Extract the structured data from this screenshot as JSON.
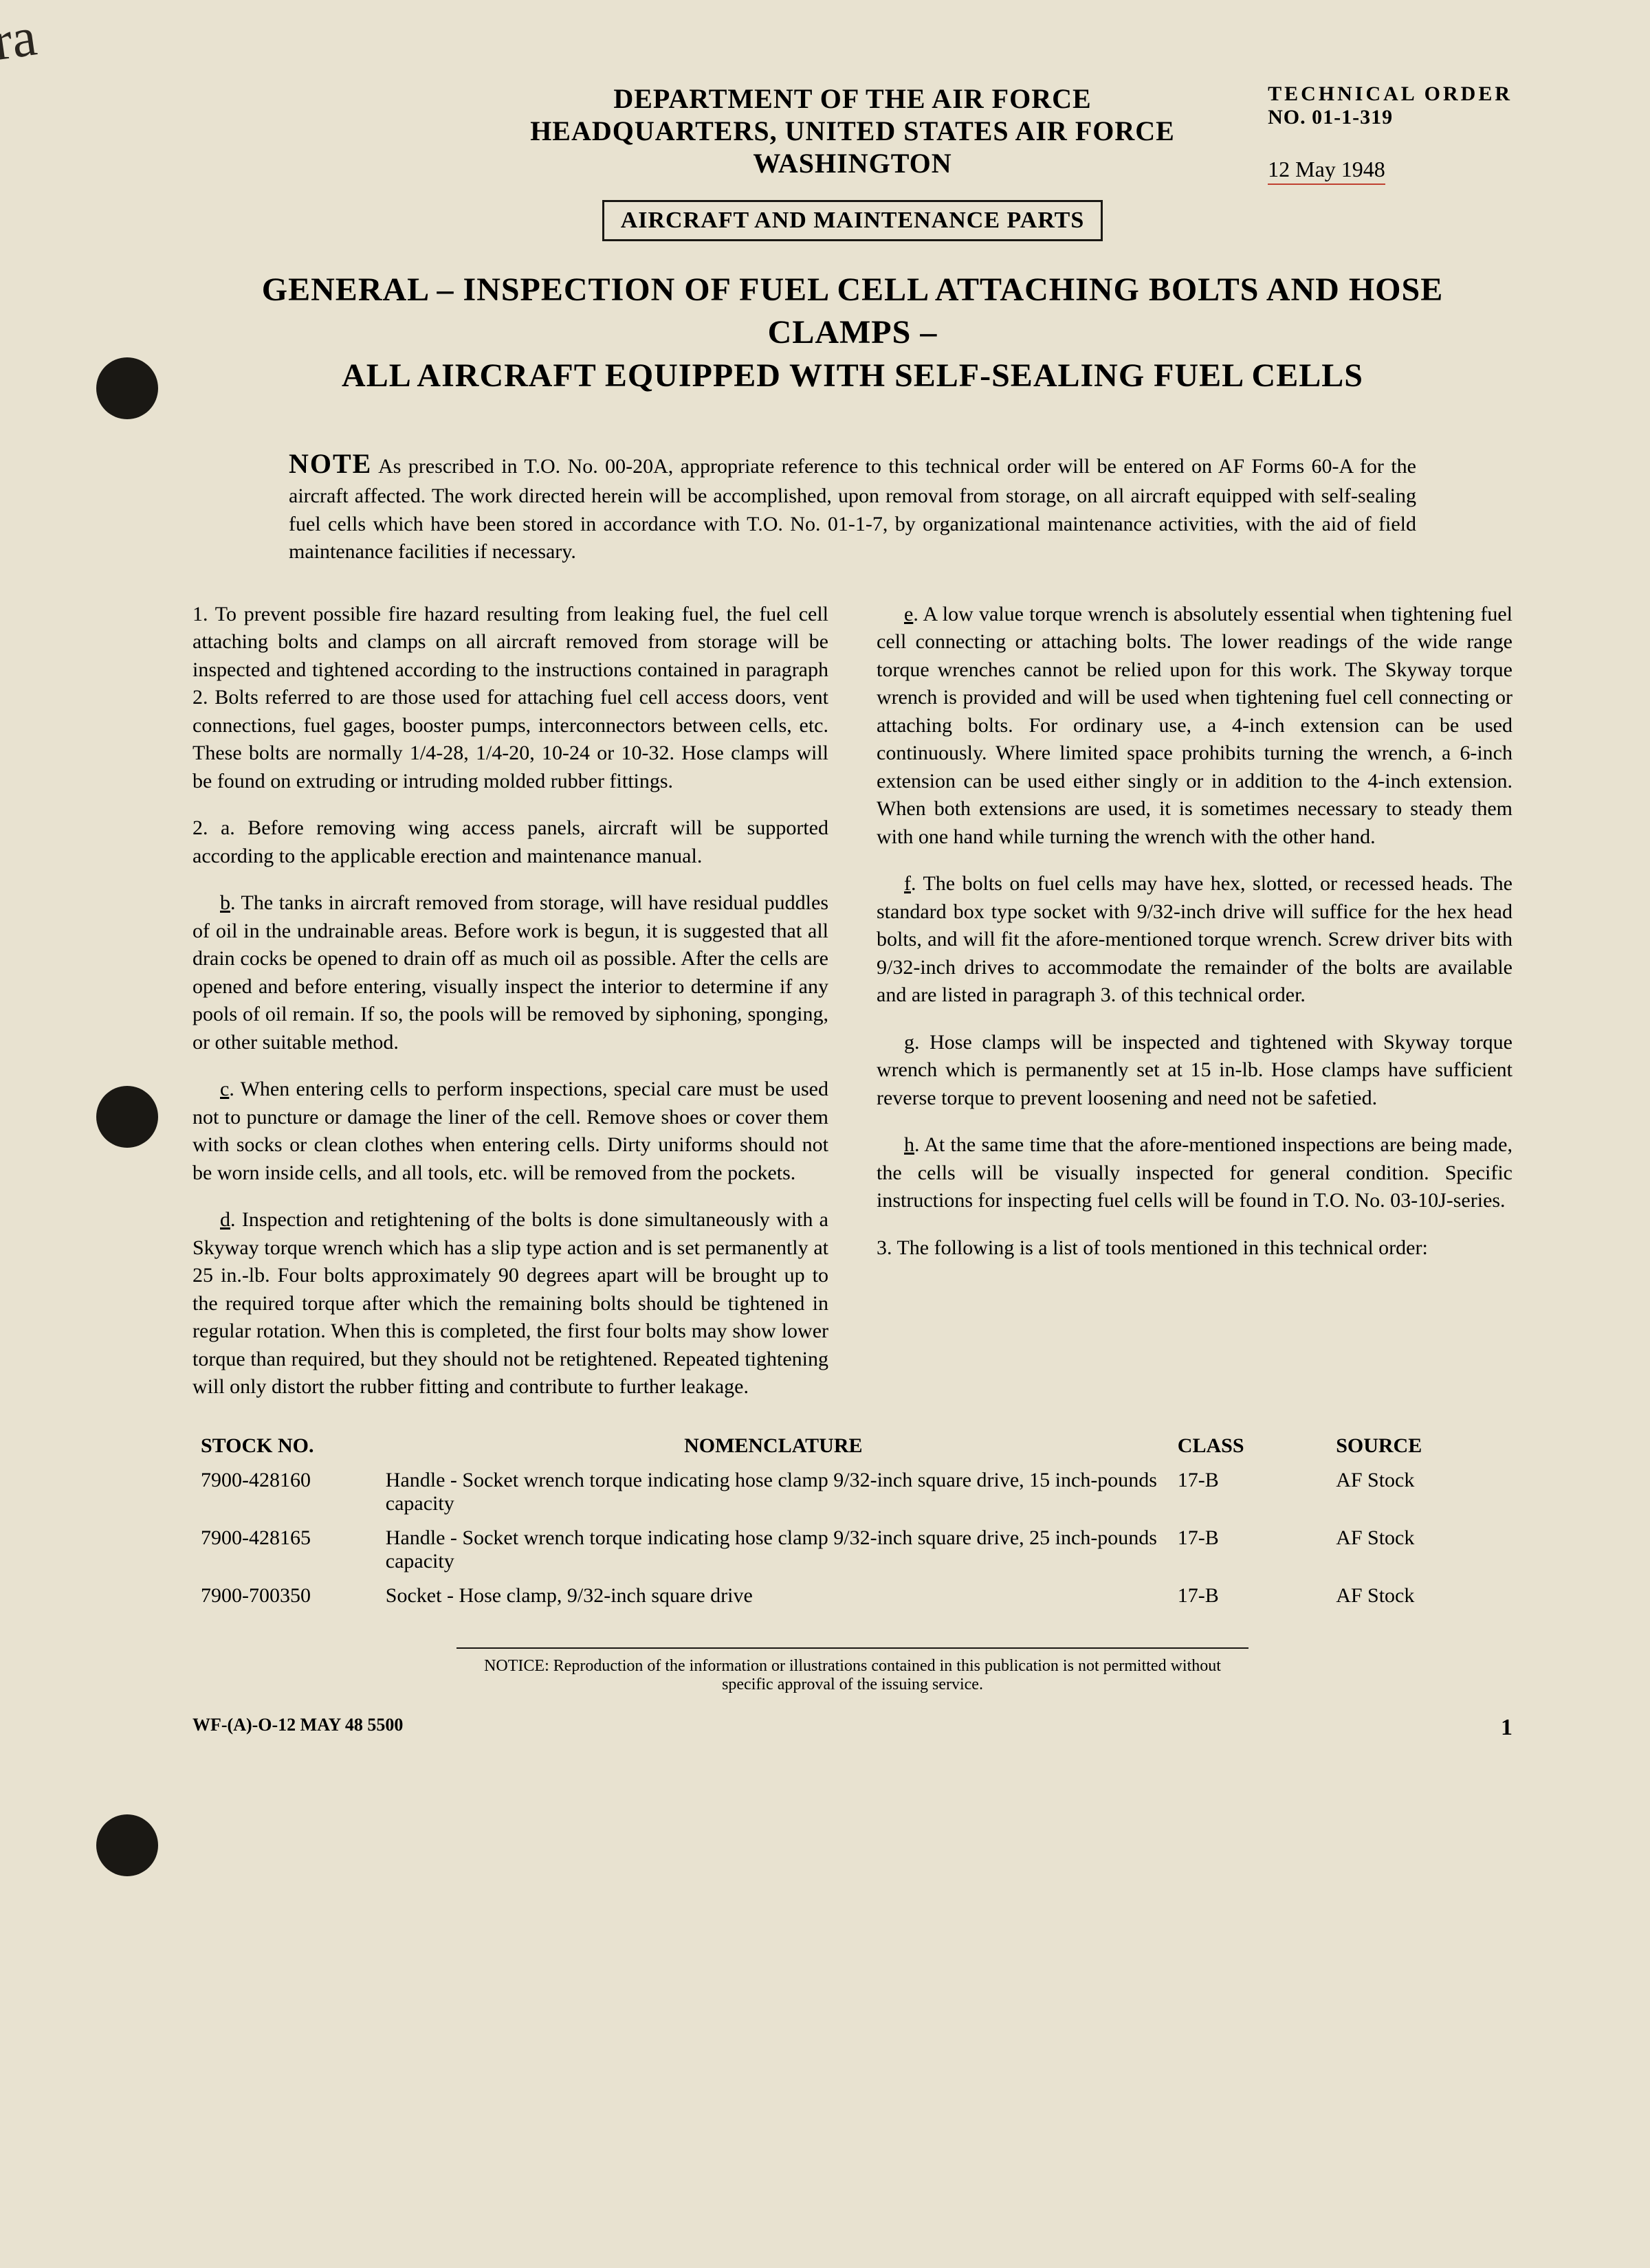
{
  "handwritten_note": "Extra",
  "header": {
    "dept": "DEPARTMENT OF THE AIR FORCE",
    "hq": "HEADQUARTERS, UNITED STATES AIR FORCE",
    "city": "WASHINGTON",
    "boxed": "AIRCRAFT AND MAINTENANCE PARTS",
    "tech_order_label": "TECHNICAL ORDER",
    "tech_order_no": "NO. 01-1-319",
    "date": "12 May 1948"
  },
  "title_line1": "GENERAL – INSPECTION OF FUEL CELL ATTACHING BOLTS AND HOSE CLAMPS –",
  "title_line2": "ALL AIRCRAFT EQUIPPED WITH SELF-SEALING FUEL CELLS",
  "note_label": "NOTE",
  "note_body": "As prescribed in T.O. No. 00-20A, appropriate reference to this technical order will be entered on AF Forms 60-A for the aircraft affected. The work directed herein will be accomplished, upon removal from storage, on all aircraft equipped with self-sealing fuel cells which have been stored in accordance with T.O. No. 01-1-7, by organizational maintenance activities, with the aid of field maintenance facilities if necessary.",
  "paragraphs": {
    "p1": "1. To prevent possible fire hazard resulting from leaking fuel, the fuel cell attaching bolts and clamps on all aircraft removed from storage will be inspected and tightened according to the instructions contained in paragraph 2. Bolts referred to are those used for attaching fuel cell access doors, vent connections, fuel gages, booster pumps, interconnectors between cells, etc. These bolts are normally 1/4-28, 1/4-20, 10-24 or 10-32. Hose clamps will be found on extruding or intruding molded rubber fittings.",
    "p2a_label": "a",
    "p2a": "2. a. Before removing wing access panels, aircraft will be supported according to the applicable erection and maintenance manual.",
    "p2b_label": "b",
    "p2b": ". The tanks in aircraft removed from storage, will have residual puddles of oil in the undrainable areas. Before work is begun, it is suggested that all drain cocks be opened to drain off as much oil as possible. After the cells are opened and before entering, visually inspect the interior to determine if any pools of oil remain. If so, the pools will be removed by siphoning, sponging, or other suitable method.",
    "p2c_label": "c",
    "p2c": ". When entering cells to perform inspections, special care must be used not to puncture or damage the liner of the cell. Remove shoes or cover them with socks or clean clothes when entering cells. Dirty uniforms should not be worn inside cells, and all tools, etc. will be removed from the pockets.",
    "p2d_label": "d",
    "p2d": ". Inspection and retightening of the bolts is done simultaneously with a Skyway torque wrench which has a slip type action and is set permanently at 25 in.-lb. Four bolts approximately 90 degrees apart will be brought up to the required torque after which the remaining bolts should be tightened in regular rotation. When this is completed, the first four bolts may show lower torque than required, but they should not be retightened. Repeated tightening will only distort the rubber fitting and contribute to further leakage.",
    "p2e_label": "e",
    "p2e": ". A low value torque wrench is absolutely essential when tightening fuel cell connecting or attaching bolts. The lower readings of the wide range torque wrenches cannot be relied upon for this work. The Skyway torque wrench is provided and will be used when tightening fuel cell connecting or attaching bolts. For ordinary use, a 4-inch extension can be used continuously. Where limited space prohibits turning the wrench, a 6-inch extension can be used either singly or in addition to the 4-inch extension. When both extensions are used, it is sometimes necessary to steady them with one hand while turning the wrench with the other hand.",
    "p2f_label": "f",
    "p2f": ". The bolts on fuel cells may have hex, slotted, or recessed heads. The standard box type socket with 9/32-inch drive will suffice for the hex head bolts, and will fit the afore-mentioned torque wrench. Screw driver bits with 9/32-inch drives to accommodate the remainder of the bolts are available and are listed in paragraph 3. of this technical order.",
    "p2g_label": "g",
    "p2g": ". Hose clamps will be inspected and tightened with Skyway torque wrench which is permanently set at 15 in-lb. Hose clamps have sufficient reverse torque to prevent loosening and need not be safetied.",
    "p2h_label": "h",
    "p2h": ". At the same time that the afore-mentioned inspections are being made, the cells will be visually inspected for general condition. Specific instructions for inspecting fuel cells will be found in T.O. No. 03-10J-series.",
    "p3": "3. The following is a list of tools mentioned in this technical order:"
  },
  "table": {
    "headers": {
      "stock": "STOCK NO.",
      "nomen": "NOMENCLATURE",
      "class": "CLASS",
      "source": "SOURCE"
    },
    "rows": [
      {
        "stock": "7900-428160",
        "nomen": "Handle - Socket wrench torque indicating hose clamp 9/32-inch square drive, 15 inch-pounds capacity",
        "class": "17-B",
        "source": "AF Stock"
      },
      {
        "stock": "7900-428165",
        "nomen": "Handle - Socket wrench torque indicating hose clamp 9/32-inch square drive, 25 inch-pounds capacity",
        "class": "17-B",
        "source": "AF Stock"
      },
      {
        "stock": "7900-700350",
        "nomen": "Socket - Hose clamp, 9/32-inch square drive",
        "class": "17-B",
        "source": "AF Stock"
      }
    ]
  },
  "notice": "NOTICE: Reproduction of the information or illustrations contained in this publication is not permitted without specific approval of the issuing service.",
  "footer_left": "WF-(A)-O-12 MAY 48 5500",
  "page_number": "1"
}
